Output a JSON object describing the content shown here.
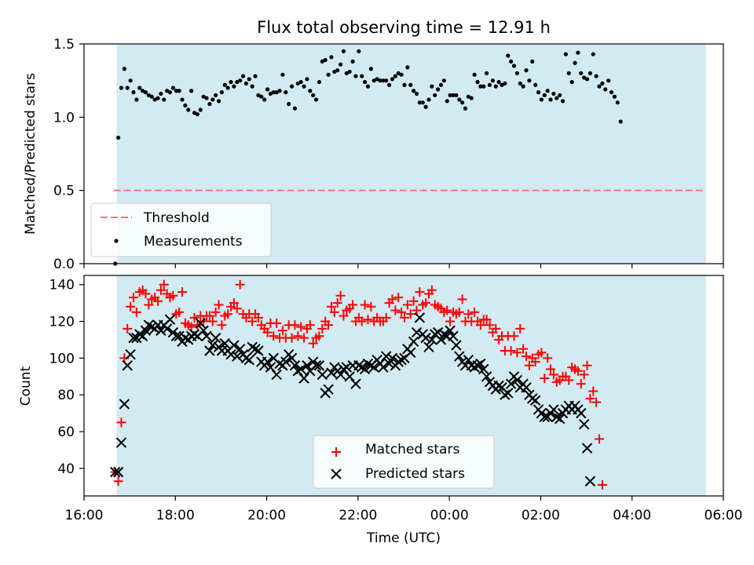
{
  "chart_data": [
    {
      "type": "scatter",
      "title": "Flux total observing time = 12.91 h",
      "xlabel": "",
      "ylabel": "Matched/Predicted stars",
      "xlim": [
        "16:00",
        "06:00"
      ],
      "ylim": [
        0,
        1.5
      ],
      "yticks": [
        "0.0",
        "0.5",
        "1.0",
        "1.5"
      ],
      "shaded_interval": [
        "16:43",
        "05:37"
      ],
      "threshold": 0.5,
      "legend": {
        "position": "lower-left",
        "entries": [
          "Threshold",
          "Measurements"
        ]
      },
      "series": [
        {
          "name": "Measurements",
          "marker": "dot",
          "color": "#000000",
          "start": "16:41",
          "step_minutes": 4,
          "values": [
            0.0,
            0.86,
            1.2,
            1.33,
            1.2,
            1.25,
            1.17,
            1.12,
            1.2,
            1.18,
            1.17,
            1.15,
            1.14,
            1.12,
            1.13,
            1.16,
            1.12,
            1.18,
            1.17,
            1.2,
            1.18,
            1.18,
            1.12,
            1.08,
            1.05,
            1.18,
            1.03,
            1.02,
            1.05,
            1.14,
            1.13,
            1.09,
            1.12,
            1.15,
            1.11,
            1.17,
            1.22,
            1.2,
            1.24,
            1.21,
            1.24,
            1.25,
            1.28,
            1.23,
            1.26,
            1.21,
            1.28,
            1.15,
            1.14,
            1.12,
            1.19,
            1.16,
            1.17,
            1.17,
            1.18,
            1.29,
            1.17,
            1.09,
            1.21,
            1.06,
            1.23,
            1.24,
            1.21,
            1.26,
            1.18,
            1.15,
            1.12,
            1.24,
            1.38,
            1.39,
            1.29,
            1.41,
            1.31,
            1.32,
            1.36,
            1.45,
            1.3,
            1.31,
            1.38,
            1.28,
            1.45,
            1.28,
            1.24,
            1.21,
            1.33,
            1.25,
            1.26,
            1.25,
            1.25,
            1.25,
            1.22,
            1.26,
            1.28,
            1.3,
            1.29,
            1.22,
            1.34,
            1.22,
            1.18,
            1.16,
            1.1,
            1.1,
            1.07,
            1.12,
            1.21,
            1.15,
            1.19,
            1.22,
            1.25,
            1.11,
            1.15,
            1.15,
            1.15,
            1.12,
            1.1,
            1.06,
            1.14,
            1.13,
            1.29,
            1.24,
            1.21,
            1.21,
            1.3,
            1.22,
            1.25,
            1.21,
            1.24,
            1.22,
            1.23,
            1.42,
            1.38,
            1.35,
            1.3,
            1.23,
            1.21,
            1.32,
            1.25,
            1.38,
            1.22,
            1.17,
            1.12,
            1.15,
            1.18,
            1.12,
            1.16,
            1.13,
            1.15,
            1.11,
            1.43,
            1.3,
            1.24,
            1.37,
            1.44,
            1.3,
            1.27,
            1.26,
            1.3,
            1.43,
            1.28,
            1.21,
            1.23,
            1.19,
            1.25,
            1.17,
            1.14,
            1.1,
            0.97
          ]
        }
      ]
    },
    {
      "type": "scatter",
      "title": "",
      "xlabel": "Time (UTC)",
      "ylabel": "Count",
      "xlim": [
        "16:00",
        "06:00"
      ],
      "xticks": [
        "16:00",
        "18:00",
        "20:00",
        "22:00",
        "00:00",
        "02:00",
        "04:00",
        "06:00"
      ],
      "ylim": [
        25,
        145
      ],
      "yticks": [
        "40",
        "60",
        "80",
        "100",
        "120",
        "140"
      ],
      "shaded_interval": [
        "16:43",
        "05:37"
      ],
      "legend": {
        "position": "lower-center",
        "entries": [
          "Matched stars",
          "Predicted stars"
        ]
      },
      "series": [
        {
          "name": "Matched stars",
          "marker": "plus",
          "color": "#ff0000",
          "start": "16:41",
          "step_minutes": 4,
          "values": [
            38,
            33,
            65,
            100,
            116,
            128,
            133,
            125,
            136,
            137,
            135,
            129,
            132,
            133,
            131,
            137,
            140,
            135,
            133,
            134,
            124,
            125,
            136,
            119,
            118,
            117,
            122,
            118,
            123,
            120,
            123,
            123,
            120,
            125,
            129,
            118,
            123,
            124,
            128,
            130,
            127,
            140,
            124,
            122,
            124,
            120,
            124,
            122,
            118,
            116,
            114,
            119,
            112,
            119,
            111,
            115,
            111,
            118,
            111,
            118,
            112,
            117,
            111,
            116,
            118,
            108,
            111,
            112,
            116,
            120,
            118,
            128,
            125,
            130,
            134,
            123,
            126,
            127,
            129,
            120,
            122,
            120,
            129,
            121,
            128,
            120,
            122,
            120,
            120,
            122,
            130,
            132,
            126,
            133,
            125,
            122,
            129,
            124,
            131,
            126,
            136,
            129,
            130,
            135,
            137,
            129,
            128,
            127,
            125,
            126,
            120,
            125,
            124,
            125,
            132,
            120,
            124,
            120,
            125,
            120,
            118,
            121,
            121,
            118,
            114,
            116,
            110,
            112,
            104,
            112,
            104,
            112,
            103,
            116,
            105,
            101,
            96,
            100,
            98,
            102,
            103,
            89,
            100,
            94,
            91,
            87,
            88,
            90,
            90,
            88,
            95,
            94,
            93,
            86,
            91,
            96,
            78,
            82,
            76,
            56,
            31
          ]
        },
        {
          "name": "Predicted stars",
          "marker": "x",
          "color": "#000000",
          "start": "16:41",
          "step_minutes": 4,
          "values": [
            38,
            38,
            54,
            75,
            96,
            102,
            111,
            111,
            113,
            112,
            115,
            118,
            117,
            116,
            118,
            115,
            118,
            116,
            121,
            114,
            112,
            112,
            109,
            111,
            110,
            112,
            113,
            112,
            119,
            115,
            112,
            104,
            107,
            111,
            106,
            104,
            108,
            104,
            102,
            107,
            101,
            105,
            102,
            100,
            99,
            106,
            105,
            104,
            98,
            96,
            98,
            95,
            100,
            91,
            97,
            96,
            98,
            102,
            100,
            96,
            93,
            94,
            89,
            96,
            93,
            98,
            96,
            96,
            91,
            81,
            83,
            92,
            95,
            93,
            91,
            94,
            95,
            90,
            96,
            86,
            96,
            95,
            94,
            97,
            96,
            95,
            99,
            97,
            95,
            101,
            97,
            100,
            96,
            98,
            99,
            100,
            105,
            103,
            109,
            114,
            122,
            113,
            111,
            106,
            110,
            113,
            114,
            110,
            113,
            112,
            115,
            112,
            107,
            101,
            98,
            96,
            99,
            96,
            95,
            96,
            97,
            94,
            90,
            87,
            85,
            83,
            85,
            84,
            80,
            81,
            86,
            90,
            88,
            84,
            86,
            84,
            80,
            78,
            77,
            72,
            70,
            68,
            68,
            70,
            72,
            68,
            67,
            70,
            72,
            74,
            72,
            74,
            72,
            70,
            64,
            51,
            33
          ]
        }
      ]
    }
  ]
}
